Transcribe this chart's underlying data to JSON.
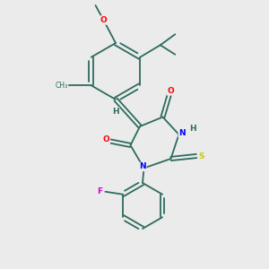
{
  "background_color": "#ebebeb",
  "bond_color": "#2d6b5e",
  "atom_colors": {
    "O": "#ff0000",
    "N": "#0000ff",
    "S": "#cccc00",
    "F": "#cc00cc",
    "H": "#2d6b5e",
    "C": "#2d6b5e"
  },
  "figsize": [
    3.0,
    3.0
  ],
  "dpi": 100
}
